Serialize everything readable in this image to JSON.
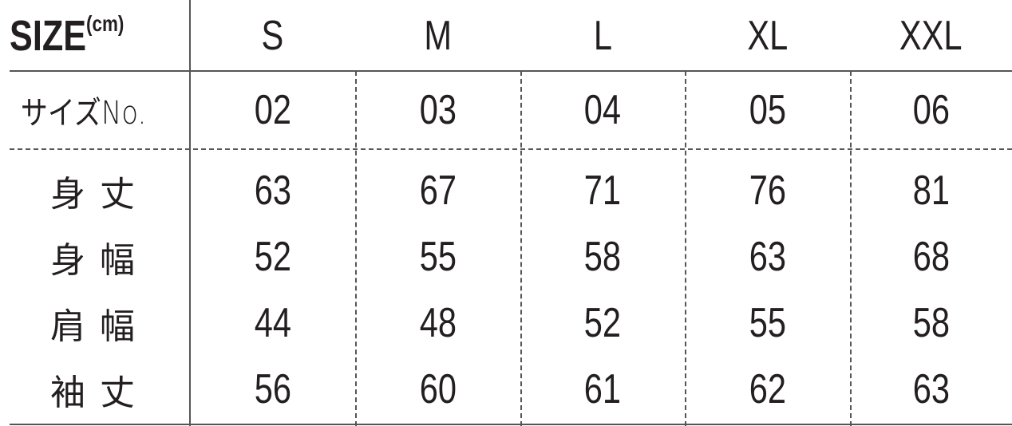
{
  "header": {
    "title": "SIZE",
    "unit": "(cm)",
    "sizes": [
      "S",
      "M",
      "L",
      "XL",
      "XXL"
    ]
  },
  "rows": [
    {
      "label": "サイズNo.",
      "values": [
        "02",
        "03",
        "04",
        "05",
        "06"
      ]
    },
    {
      "label": "身丈",
      "values": [
        "63",
        "67",
        "71",
        "76",
        "81"
      ]
    },
    {
      "label": "身幅",
      "values": [
        "52",
        "55",
        "58",
        "63",
        "68"
      ]
    },
    {
      "label": "肩幅",
      "values": [
        "44",
        "48",
        "52",
        "55",
        "58"
      ]
    },
    {
      "label": "袖丈",
      "values": [
        "56",
        "60",
        "61",
        "62",
        "63"
      ]
    }
  ]
}
